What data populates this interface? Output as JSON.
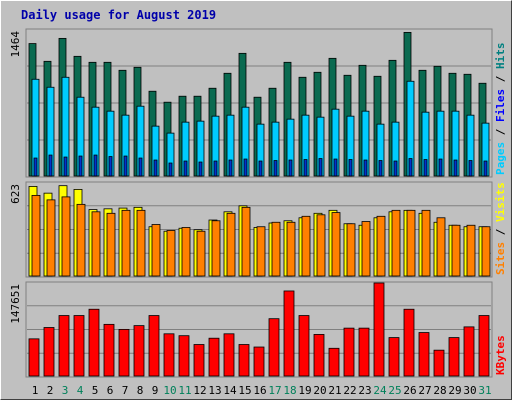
{
  "chart_data": {
    "type": "bar",
    "title": "Daily usage for August 2019",
    "categories": [
      "1",
      "2",
      "3",
      "4",
      "5",
      "6",
      "7",
      "8",
      "9",
      "10",
      "11",
      "12",
      "13",
      "14",
      "15",
      "16",
      "17",
      "18",
      "19",
      "20",
      "21",
      "22",
      "23",
      "24",
      "25",
      "26",
      "27",
      "28",
      "29",
      "30",
      "31"
    ],
    "weekend_days": [
      "3",
      "4",
      "10",
      "11",
      "17",
      "18",
      "24",
      "25",
      "31"
    ],
    "panels": [
      {
        "name": "hits",
        "ymax_label": "1464",
        "ylim": [
          0,
          1464
        ],
        "side_labels": [
          "Pages",
          "Files",
          "Hits"
        ],
        "side_colors": [
          "#00ccff",
          "#0000ff",
          "#008080"
        ],
        "series": [
          {
            "name": "Hits",
            "color": "#0a6a50",
            "values": [
              1328,
              1150,
              1380,
              1200,
              1140,
              1140,
              1060,
              1090,
              850,
              740,
              800,
              800,
              880,
              1030,
              1230,
              790,
              880,
              1140,
              990,
              1040,
              1180,
              1010,
              1110,
              1000,
              1160,
              1440,
              1060,
              1100,
              1030,
              1020,
              930
            ]
          },
          {
            "name": "Files",
            "color": "#00ccff",
            "values": [
              970,
              890,
              990,
              790,
              690,
              650,
              610,
              700,
              500,
              430,
              540,
              550,
              600,
              610,
              690,
              520,
              540,
              570,
              610,
              590,
              670,
              600,
              650,
              520,
              540,
              950,
              640,
              650,
              650,
              610,
              530
            ]
          },
          {
            "name": "Pages",
            "color": "#0033cc",
            "values": [
              180,
              210,
              190,
              200,
              210,
              195,
              200,
              180,
              160,
              130,
              150,
              140,
              150,
              160,
              170,
              150,
              155,
              160,
              165,
              175,
              170,
              165,
              160,
              155,
              150,
              175,
              165,
              170,
              160,
              155,
              150
            ]
          }
        ]
      },
      {
        "name": "visits",
        "ymax_label": "623",
        "ylim": [
          0,
          623
        ],
        "side_labels": [
          "Sites",
          "Visits"
        ],
        "side_colors": [
          "#ff8000",
          "#ffff00"
        ],
        "series": [
          {
            "name": "Visits",
            "color": "#ffff00",
            "values": [
              600,
              555,
              605,
              580,
              445,
              450,
              455,
              460,
              330,
              300,
              320,
              310,
              375,
              430,
              470,
              325,
              355,
              370,
              390,
              420,
              440,
              350,
              340,
              390,
              430,
              440,
              420,
              360,
              340,
              330,
              330
            ]
          },
          {
            "name": "Sites",
            "color": "#ff8000",
            "values": [
              540,
              510,
              530,
              480,
              430,
              420,
              440,
              440,
              345,
              305,
              325,
              300,
              370,
              420,
              460,
              330,
              360,
              360,
              400,
              410,
              425,
              350,
              365,
              400,
              440,
              440,
              440,
              390,
              340,
              340,
              330
            ]
          }
        ]
      },
      {
        "name": "kbytes",
        "ymax_label": "147651",
        "ylim": [
          0,
          147651
        ],
        "side_labels": [
          "KBytes"
        ],
        "side_colors": [
          "#ff0000"
        ],
        "series": [
          {
            "name": "KBytes",
            "color": "#ff0000",
            "values": [
              59000,
              77000,
              96000,
              96000,
              106000,
              82000,
              74000,
              80000,
              96000,
              67000,
              64000,
              50000,
              60000,
              67000,
              50000,
              46000,
              91000,
              135000,
              96000,
              66000,
              44000,
              76000,
              76000,
              147651,
              61000,
              106000,
              69000,
              41000,
              61000,
              78000,
              96000
            ]
          }
        ]
      }
    ]
  }
}
